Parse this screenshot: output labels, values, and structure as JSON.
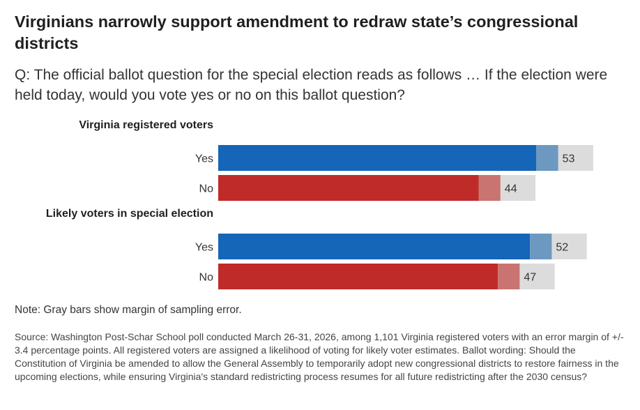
{
  "header": {
    "title": "Virginians narrowly support amendment to redraw state’s congressional districts",
    "question": "Q: The official ballot question for the special election reads as follows … If the election were held today, would you vote yes or no on this ballot question?"
  },
  "chart_data": {
    "type": "bar",
    "orientation": "horizontal",
    "margin_of_error": 3.4,
    "x_range": [
      0,
      60
    ],
    "groups": [
      {
        "name": "Virginia registered voters",
        "bars": [
          {
            "label": "Yes",
            "value": 53
          },
          {
            "label": "No",
            "value": 44
          }
        ]
      },
      {
        "name": "Likely voters in special election",
        "bars": [
          {
            "label": "Yes",
            "value": 52
          },
          {
            "label": "No",
            "value": 47
          }
        ]
      }
    ],
    "colors": {
      "Yes": "#1565b8",
      "No": "#bf2b28",
      "Yes_moe": "#6d98c0",
      "No_moe": "#c97470",
      "gray": "#dcdcdc"
    }
  },
  "footer": {
    "note": "Note: Gray bars show margin of sampling error.",
    "source": "Source: Washington Post-Schar School poll conducted March 26-31, 2026, among 1,101 Virginia registered voters with an error margin of +/- 3.4 percentage points. All registered voters are assigned a likelihood of voting for likely voter estimates. Ballot wording: Should the Constitution of Virginia be amended to allow the General Assembly to temporarily adopt new congressional districts to restore fairness in the upcoming elections, while ensuring Virginia's standard redistricting process resumes for all future redistricting after the 2030 census?"
  }
}
